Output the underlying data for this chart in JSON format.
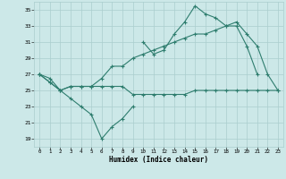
{
  "xlabel": "Humidex (Indice chaleur)",
  "ylabel": "",
  "x_values": [
    0,
    1,
    2,
    3,
    4,
    5,
    6,
    7,
    8,
    9,
    10,
    11,
    12,
    13,
    14,
    15,
    16,
    17,
    18,
    19,
    20,
    21,
    22,
    23
  ],
  "line1": [
    27,
    26,
    25,
    25.5,
    25.5,
    25.5,
    25.5,
    25.5,
    25.5,
    24.5,
    24.5,
    24.5,
    24.5,
    24.5,
    24.5,
    25,
    25,
    25,
    25,
    25,
    25,
    25,
    25,
    25
  ],
  "line2": [
    27,
    26,
    25,
    25.5,
    25.5,
    25.5,
    26.5,
    28,
    28,
    29,
    29.5,
    30,
    30.5,
    31,
    31.5,
    32,
    32,
    32.5,
    33,
    33.5,
    32,
    30.5,
    27,
    25
  ],
  "line3": [
    27,
    26.5,
    25,
    24,
    23,
    22,
    19,
    20.5,
    21.5,
    23,
    null,
    null,
    null,
    null,
    null,
    null,
    null,
    null,
    null,
    null,
    null,
    null,
    null,
    null
  ],
  "line4": [
    27,
    null,
    null,
    null,
    null,
    null,
    null,
    null,
    null,
    null,
    31,
    29.5,
    30,
    32,
    33.5,
    35.5,
    34.5,
    34,
    33,
    33,
    30.5,
    27,
    null,
    null
  ],
  "ylim": [
    18,
    36
  ],
  "yticks": [
    19,
    21,
    23,
    25,
    27,
    29,
    31,
    33,
    35
  ],
  "xlim": [
    -0.5,
    23.5
  ],
  "line_color": "#2e7d6e",
  "bg_color": "#cce8e8",
  "grid_color": "#aacece"
}
